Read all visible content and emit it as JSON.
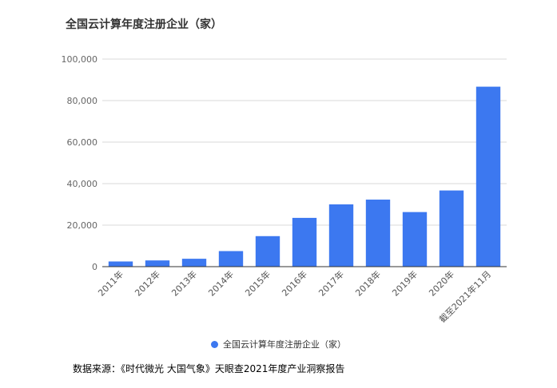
{
  "chart_data": {
    "type": "bar",
    "title": "全国云计算年度注册企业（家）",
    "categories": [
      "2011年",
      "2012年",
      "2013年",
      "2014年",
      "2015年",
      "2016年",
      "2017年",
      "2018年",
      "2019年",
      "2020年",
      "截至2021年11月"
    ],
    "series": [
      {
        "name": "全国云计算年度注册企业（家）",
        "values": [
          2500,
          3000,
          3800,
          7500,
          14700,
          23500,
          30000,
          32300,
          26300,
          36700,
          86700
        ]
      }
    ],
    "yticks": [
      "0",
      "20,000",
      "40,000",
      "60,000",
      "80,000",
      "100,000"
    ],
    "ylim": [
      0,
      100000
    ],
    "grid": true,
    "legend_position": "bottom",
    "bar_color": "#3c78f0"
  },
  "source": "数据来源：《时代微光 大国气象》天眼查2021年度产业洞察报告"
}
